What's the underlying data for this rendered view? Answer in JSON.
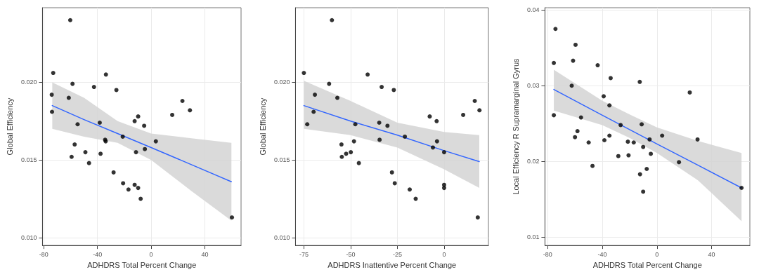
{
  "chart_data": [
    {
      "type": "scatter",
      "xlabel": "ADHDRS Total Percent Change",
      "ylabel": "Global Efficiency",
      "xlim": [
        -81,
        67
      ],
      "ylim": [
        0.0095,
        0.0248
      ],
      "xticks": [
        -80,
        -40,
        0,
        40
      ],
      "yticks": [
        {
          "value": 0.01,
          "label": "0.010"
        },
        {
          "value": 0.015,
          "label": "0.015"
        },
        {
          "value": 0.02,
          "label": "0.020"
        }
      ],
      "grid": true,
      "series": [
        {
          "marker": "circle",
          "color": "#000000",
          "x": [
            -60.3,
            -73.0,
            -58.6,
            -74.1,
            -61.4,
            -73.9,
            -54.8,
            -57.0,
            -59.3,
            -49.0,
            -46.3,
            -42.6,
            -38.3,
            -37.7,
            -34.3,
            -33.9,
            -33.7,
            -28.0,
            -25.9,
            -21.2,
            -20.9,
            -16.9,
            -12.3,
            -9.7,
            -12.3,
            -9.7,
            -7.8,
            -11.3,
            -5.2,
            -4.7,
            3.5,
            15.7,
            23.3,
            28.9,
            60.2
          ],
          "values": [
            0.024,
            0.0206,
            0.0199,
            0.0192,
            0.019,
            0.0181,
            0.0173,
            0.016,
            0.0152,
            0.0155,
            0.0148,
            0.0197,
            0.0174,
            0.0154,
            0.0163,
            0.0162,
            0.0205,
            0.0142,
            0.0195,
            0.0165,
            0.0135,
            0.0131,
            0.0175,
            0.0178,
            0.0134,
            0.0132,
            0.0125,
            0.0155,
            0.0172,
            0.0157,
            0.0162,
            0.0179,
            0.0188,
            0.0182,
            0.0113
          ]
        },
        {
          "type": "line",
          "marker": "none",
          "color": "#3366ff",
          "line_style": "solid",
          "x": [
            -73.7,
            -50,
            -25,
            0,
            30,
            59.8
          ],
          "values": [
            0.0185,
            0.0176,
            0.0167,
            0.0158,
            0.0147,
            0.0136
          ],
          "lower": [
            0.017,
            0.0165,
            0.0161,
            0.015,
            0.013,
            0.0111
          ],
          "upper": [
            0.02,
            0.019,
            0.0175,
            0.0167,
            0.0164,
            0.0161
          ]
        }
      ]
    },
    {
      "type": "scatter",
      "xlabel": "ADHDRS Inattentive Percent Change",
      "ylabel": "Global Efficiency",
      "xlim": [
        -79.5,
        23.7
      ],
      "ylim": [
        0.0095,
        0.0248
      ],
      "xticks": [
        -75,
        -50,
        -25,
        0
      ],
      "yticks": [
        {
          "value": 0.01,
          "label": "0.010"
        },
        {
          "value": 0.015,
          "label": "0.015"
        },
        {
          "value": 0.02,
          "label": "0.020"
        }
      ],
      "grid": true,
      "series": [
        {
          "marker": "circle",
          "color": "#000000",
          "x": [
            -60.0,
            -75.0,
            -61.5,
            -69.1,
            -57.1,
            -69.8,
            -73.2,
            -47.5,
            -54.9,
            -54.7,
            -52.4,
            -49.9,
            -48.2,
            -45.6,
            -40.9,
            -34.7,
            -34.5,
            -33.4,
            -30.3,
            -27.9,
            -26.9,
            -26.4,
            -21.0,
            -18.4,
            -15.2,
            -7.7,
            -6.0,
            -4.0,
            -3.8,
            0,
            0,
            0,
            10.2,
            16.4,
            18.9,
            18.0
          ],
          "values": [
            0.024,
            0.0206,
            0.0199,
            0.0192,
            0.019,
            0.0181,
            0.0173,
            0.0173,
            0.016,
            0.0152,
            0.0154,
            0.0155,
            0.0162,
            0.0148,
            0.0205,
            0.0174,
            0.0163,
            0.0197,
            0.0172,
            0.0142,
            0.0195,
            0.0135,
            0.0165,
            0.0131,
            0.0125,
            0.0178,
            0.0158,
            0.0175,
            0.0162,
            0.0155,
            0.0134,
            0.0132,
            0.0179,
            0.0188,
            0.0182,
            0.0113
          ]
        },
        {
          "type": "line",
          "marker": "none",
          "color": "#3366ff",
          "line_style": "solid",
          "x": [
            -75,
            -50,
            -25,
            0,
            18.8
          ],
          "values": [
            0.0185,
            0.0175,
            0.0166,
            0.0156,
            0.0149
          ],
          "lower": [
            0.017,
            0.0166,
            0.0158,
            0.0144,
            0.0132
          ],
          "upper": [
            0.0201,
            0.0188,
            0.0174,
            0.0168,
            0.0166
          ]
        }
      ]
    },
    {
      "type": "scatter",
      "xlabel": "ADHDRS Total Percent Change",
      "ylabel": "Local Efficiency R Supramarginal Gyrus",
      "xlim": [
        -82,
        68
      ],
      "ylim": [
        0.0089,
        0.0403
      ],
      "xticks": [
        -80,
        -40,
        0,
        40
      ],
      "yticks": [
        0.01,
        0.02,
        0.03,
        0.04
      ],
      "grid": true,
      "series": [
        {
          "marker": "circle",
          "color": "#000000",
          "x": [
            -74.3,
            -59.6,
            -75.5,
            -61.4,
            -43.4,
            -33.9,
            -12.6,
            -62.4,
            24.0,
            -39.0,
            -34.8,
            -75.5,
            -55.6,
            -26.6,
            -11.2,
            -58.2,
            -60.0,
            -34.8,
            3.8,
            -38.5,
            -5.4,
            29.7,
            -50.0,
            -21.3,
            -17.0,
            -10.1,
            -4.5,
            -28.3,
            -20.8,
            16.1,
            -47.2,
            -7.5,
            -12.4,
            -10.1,
            61.9
          ],
          "values": [
            0.0375,
            0.0354,
            0.033,
            0.0333,
            0.0327,
            0.031,
            0.0305,
            0.03,
            0.0291,
            0.0286,
            0.0274,
            0.0261,
            0.0258,
            0.0248,
            0.0249,
            0.024,
            0.0232,
            0.0234,
            0.0234,
            0.0228,
            0.0229,
            0.0229,
            0.0225,
            0.0226,
            0.0225,
            0.0219,
            0.021,
            0.0207,
            0.0208,
            0.0199,
            0.0194,
            0.019,
            0.0183,
            0.016,
            0.0165
          ]
        },
        {
          "type": "line",
          "marker": "none",
          "color": "#3366ff",
          "line_style": "solid",
          "x": [
            -75.5,
            -40,
            -20,
            0,
            30,
            61.9
          ],
          "values": [
            0.0295,
            0.0261,
            0.0242,
            0.0223,
            0.0195,
            0.0165
          ],
          "lower": [
            0.0267,
            0.0248,
            0.0231,
            0.0211,
            0.0175,
            0.0121
          ],
          "upper": [
            0.0321,
            0.028,
            0.0262,
            0.0245,
            0.0227,
            0.0211
          ]
        }
      ]
    }
  ]
}
